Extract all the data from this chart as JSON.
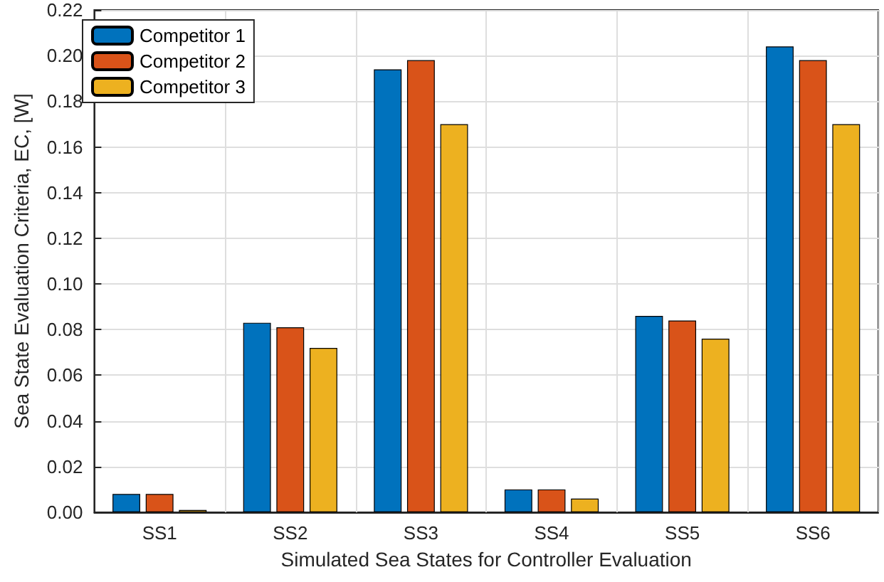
{
  "chart_data": {
    "type": "bar",
    "xlabel": "Simulated Sea States for Controller Evaluation",
    "ylabel": "Sea State Evaluation Criteria, EC, [W]",
    "categories": [
      "SS1",
      "SS2",
      "SS3",
      "SS4",
      "SS5",
      "SS6"
    ],
    "series": [
      {
        "name": "Competitor 1",
        "color": "#0072bd",
        "values": [
          0.008,
          0.083,
          0.194,
          0.01,
          0.086,
          0.204
        ]
      },
      {
        "name": "Competitor 2",
        "color": "#d95319",
        "values": [
          0.008,
          0.081,
          0.198,
          0.01,
          0.084,
          0.198
        ]
      },
      {
        "name": "Competitor 3",
        "color": "#edb120",
        "values": [
          0.001,
          0.072,
          0.17,
          0.006,
          0.076,
          0.17
        ]
      }
    ],
    "ylim": [
      0,
      0.22
    ],
    "yticks": [
      {
        "value": 0,
        "label": "0.00"
      },
      {
        "value": 0.02,
        "label": "0.02"
      },
      {
        "value": 0.04,
        "label": "0.04"
      },
      {
        "value": 0.06,
        "label": "0.06"
      },
      {
        "value": 0.08,
        "label": "0.08"
      },
      {
        "value": 0.1,
        "label": "0.10"
      },
      {
        "value": 0.12,
        "label": "0.12"
      },
      {
        "value": 0.14,
        "label": "0.14"
      },
      {
        "value": 0.16,
        "label": "0.16"
      },
      {
        "value": 0.18,
        "label": "0.18"
      },
      {
        "value": 0.2,
        "label": "0.20"
      },
      {
        "value": 0.22,
        "label": "0.22"
      }
    ],
    "grid": true,
    "legend": "top left"
  }
}
